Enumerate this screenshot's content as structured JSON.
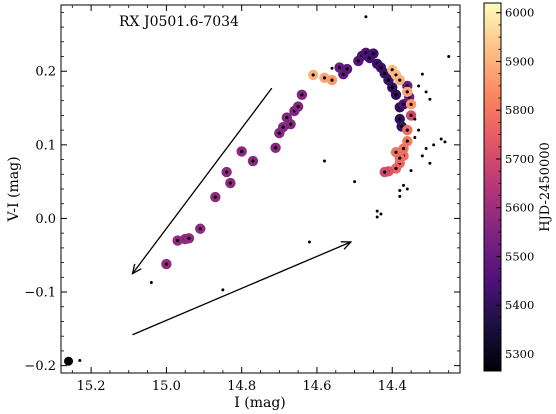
{
  "chart_data": {
    "type": "scatter",
    "annotation": "RX J0501.6-7034",
    "xlabel": "I (mag)",
    "ylabel": "V-I (mag)",
    "xlim": [
      15.28,
      14.22
    ],
    "ylim": [
      -0.21,
      0.29
    ],
    "x_axis_inverted": true,
    "xticks": [
      15.2,
      15.0,
      14.8,
      14.6,
      14.4
    ],
    "xtick_labels": [
      "15.2",
      "15.0",
      "14.8",
      "14.6",
      "14.4"
    ],
    "yticks": [
      -0.2,
      -0.1,
      0.0,
      0.1,
      0.2
    ],
    "ytick_labels": [
      "−0.2",
      "−0.1",
      "0.0",
      "0.1",
      "0.2"
    ],
    "colorbar": {
      "label": "HJD-2450000",
      "range": [
        5265,
        6020
      ],
      "colormap": "magma",
      "ticks": [
        5300,
        5400,
        5500,
        5600,
        5700,
        5800,
        5900,
        6000
      ],
      "tick_labels": [
        "5300",
        "5400",
        "5500",
        "5600",
        "5700",
        "5800",
        "5900",
        "6000"
      ]
    },
    "series": [
      {
        "marker": "large colored circle with black center",
        "points": [
          {
            "x": 15.0,
            "y": -0.062,
            "t": 5580
          },
          {
            "x": 14.97,
            "y": -0.03,
            "t": 5578
          },
          {
            "x": 14.95,
            "y": -0.028,
            "t": 5576
          },
          {
            "x": 14.94,
            "y": -0.027,
            "t": 5576
          },
          {
            "x": 14.91,
            "y": -0.014,
            "t": 5574
          },
          {
            "x": 14.87,
            "y": 0.029,
            "t": 5572
          },
          {
            "x": 14.84,
            "y": 0.063,
            "t": 5570
          },
          {
            "x": 14.83,
            "y": 0.048,
            "t": 5568
          },
          {
            "x": 14.8,
            "y": 0.091,
            "t": 5566
          },
          {
            "x": 14.77,
            "y": 0.078,
            "t": 5564
          },
          {
            "x": 14.71,
            "y": 0.096,
            "t": 5562
          },
          {
            "x": 14.7,
            "y": 0.116,
            "t": 5560
          },
          {
            "x": 14.69,
            "y": 0.124,
            "t": 5558
          },
          {
            "x": 14.68,
            "y": 0.137,
            "t": 5556
          },
          {
            "x": 14.67,
            "y": 0.128,
            "t": 5556
          },
          {
            "x": 14.66,
            "y": 0.146,
            "t": 5554
          },
          {
            "x": 14.65,
            "y": 0.152,
            "t": 5552
          },
          {
            "x": 14.64,
            "y": 0.168,
            "t": 5550
          },
          {
            "x": 14.61,
            "y": 0.195,
            "t": 5900
          },
          {
            "x": 14.58,
            "y": 0.191,
            "t": 5880
          },
          {
            "x": 14.56,
            "y": 0.188,
            "t": 5860
          },
          {
            "x": 14.54,
            "y": 0.205,
            "t": 5500
          },
          {
            "x": 14.53,
            "y": 0.196,
            "t": 5490
          },
          {
            "x": 14.52,
            "y": 0.203,
            "t": 5480
          },
          {
            "x": 14.49,
            "y": 0.214,
            "t": 5470
          },
          {
            "x": 14.48,
            "y": 0.221,
            "t": 5460
          },
          {
            "x": 14.47,
            "y": 0.225,
            "t": 5450
          },
          {
            "x": 14.46,
            "y": 0.218,
            "t": 5440
          },
          {
            "x": 14.45,
            "y": 0.224,
            "t": 5430
          },
          {
            "x": 14.44,
            "y": 0.21,
            "t": 5420
          },
          {
            "x": 14.43,
            "y": 0.205,
            "t": 5420
          },
          {
            "x": 14.42,
            "y": 0.197,
            "t": 5410
          },
          {
            "x": 14.41,
            "y": 0.188,
            "t": 5410
          },
          {
            "x": 14.4,
            "y": 0.178,
            "t": 5400
          },
          {
            "x": 14.39,
            "y": 0.168,
            "t": 5400
          },
          {
            "x": 14.38,
            "y": 0.151,
            "t": 5400
          },
          {
            "x": 14.38,
            "y": 0.135,
            "t": 5400
          },
          {
            "x": 14.375,
            "y": 0.125,
            "t": 5410
          },
          {
            "x": 14.37,
            "y": 0.155,
            "t": 5450
          },
          {
            "x": 14.36,
            "y": 0.18,
            "t": 5500
          },
          {
            "x": 14.355,
            "y": 0.165,
            "t": 5520
          },
          {
            "x": 14.4,
            "y": 0.202,
            "t": 5920
          },
          {
            "x": 14.39,
            "y": 0.195,
            "t": 5910
          },
          {
            "x": 14.38,
            "y": 0.188,
            "t": 5900
          },
          {
            "x": 14.36,
            "y": 0.172,
            "t": 5880
          },
          {
            "x": 14.35,
            "y": 0.155,
            "t": 5860
          },
          {
            "x": 14.35,
            "y": 0.14,
            "t": 5700
          },
          {
            "x": 14.36,
            "y": 0.12,
            "t": 5780
          },
          {
            "x": 14.36,
            "y": 0.105,
            "t": 5800
          },
          {
            "x": 14.37,
            "y": 0.095,
            "t": 5790
          },
          {
            "x": 14.37,
            "y": 0.085,
            "t": 5780
          },
          {
            "x": 14.38,
            "y": 0.075,
            "t": 5770
          },
          {
            "x": 14.39,
            "y": 0.068,
            "t": 5760
          },
          {
            "x": 14.41,
            "y": 0.064,
            "t": 5720
          },
          {
            "x": 14.42,
            "y": 0.063,
            "t": 5700
          },
          {
            "x": 14.39,
            "y": 0.09,
            "t": 5790
          },
          {
            "x": 14.38,
            "y": 0.082,
            "t": 5780
          }
        ]
      },
      {
        "marker": "small black dot",
        "points": [
          {
            "x": 14.47,
            "y": 0.274
          },
          {
            "x": 14.25,
            "y": 0.22
          },
          {
            "x": 14.32,
            "y": 0.196
          },
          {
            "x": 14.33,
            "y": 0.18
          },
          {
            "x": 14.31,
            "y": 0.172
          },
          {
            "x": 14.3,
            "y": 0.162
          },
          {
            "x": 14.34,
            "y": 0.135
          },
          {
            "x": 14.27,
            "y": 0.108
          },
          {
            "x": 14.29,
            "y": 0.1
          },
          {
            "x": 14.26,
            "y": 0.104
          },
          {
            "x": 14.31,
            "y": 0.095
          },
          {
            "x": 14.32,
            "y": 0.085
          },
          {
            "x": 14.3,
            "y": 0.075
          },
          {
            "x": 14.35,
            "y": 0.065
          },
          {
            "x": 14.37,
            "y": 0.045
          },
          {
            "x": 14.38,
            "y": 0.038
          },
          {
            "x": 14.36,
            "y": 0.04
          },
          {
            "x": 14.38,
            "y": 0.03
          },
          {
            "x": 14.5,
            "y": 0.05
          },
          {
            "x": 14.58,
            "y": 0.078
          },
          {
            "x": 14.44,
            "y": 0.01
          },
          {
            "x": 14.43,
            "y": 0.006
          },
          {
            "x": 14.44,
            "y": 0.002
          },
          {
            "x": 14.62,
            "y": -0.032
          },
          {
            "x": 14.85,
            "y": -0.097
          },
          {
            "x": 15.04,
            "y": -0.087
          },
          {
            "x": 15.23,
            "y": -0.193
          },
          {
            "x": 14.56,
            "y": 0.204
          },
          {
            "x": 14.34,
            "y": 0.11
          },
          {
            "x": 14.33,
            "y": 0.12
          }
        ]
      },
      {
        "marker": "large black dot",
        "points": [
          {
            "x": 15.26,
            "y": -0.194
          }
        ]
      }
    ],
    "arrows": [
      {
        "from": {
          "x": 14.72,
          "y": 0.177
        },
        "to": {
          "x": 15.09,
          "y": -0.075
        }
      },
      {
        "from": {
          "x": 15.09,
          "y": -0.158
        },
        "to": {
          "x": 14.51,
          "y": -0.032
        }
      }
    ]
  }
}
